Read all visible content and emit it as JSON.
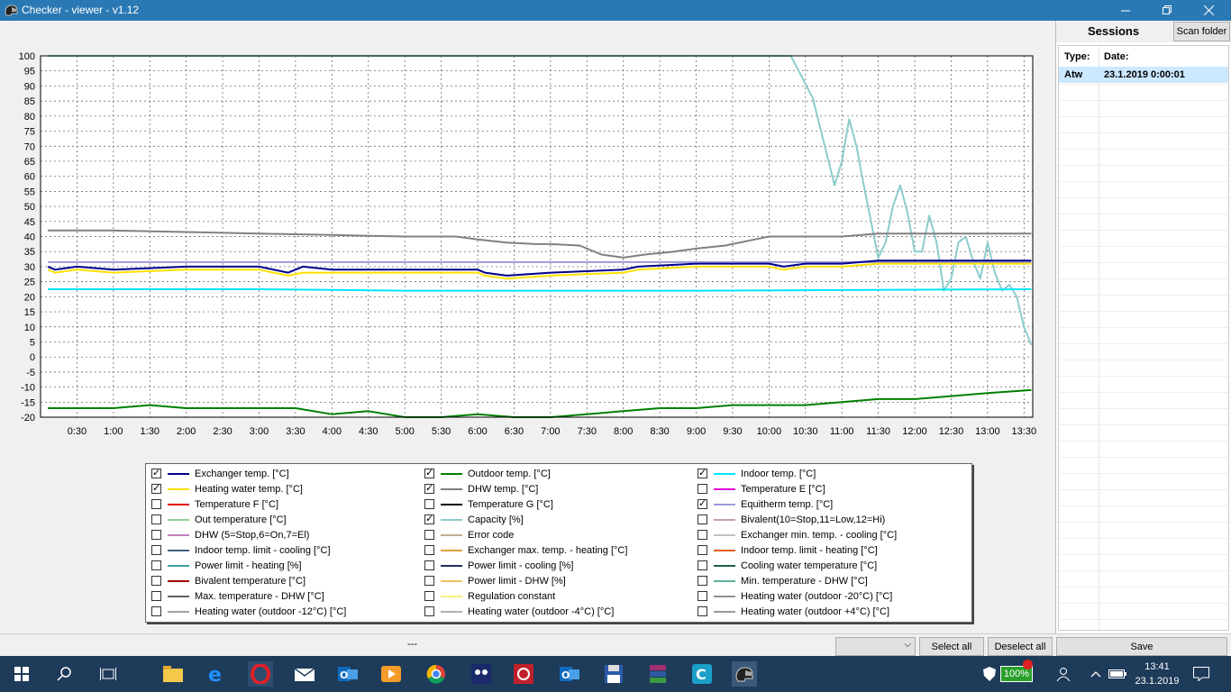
{
  "window": {
    "title": "Checker - viewer - v1.12",
    "icon": "helmet-icon",
    "controls": [
      "minimize-icon",
      "restore-icon",
      "close-icon"
    ]
  },
  "chart_data": {
    "type": "line",
    "ylim": [
      -20,
      100
    ],
    "yticks": [
      "100",
      "95",
      "90",
      "85",
      "80",
      "75",
      "70",
      "65",
      "60",
      "55",
      "50",
      "45",
      "40",
      "35",
      "30",
      "25",
      "20",
      "15",
      "10",
      "5",
      "0",
      "-5",
      "-10",
      "-15",
      "-20"
    ],
    "xticks": [
      "0:30",
      "1:00",
      "1:30",
      "2:00",
      "2:30",
      "3:00",
      "3:30",
      "4:00",
      "4:30",
      "5:00",
      "5:30",
      "6:00",
      "6:30",
      "7:00",
      "7:30",
      "8:00",
      "8:30",
      "9:00",
      "9:30",
      "10:00",
      "10:30",
      "11:00",
      "11:30",
      "12:00",
      "12:30",
      "13:00",
      "13:30"
    ],
    "grid": true,
    "series": [
      {
        "name": "Capacity [%]",
        "color": "#8ccccc",
        "x": [
          0.1,
          2,
          4,
          6,
          8,
          10,
          10.3,
          10.6,
          10.9,
          11,
          11.1,
          11.2,
          11.3,
          11.5,
          11.6,
          11.7,
          11.8,
          11.9,
          12,
          12.1,
          12.2,
          12.3,
          12.4,
          12.5,
          12.6,
          12.7,
          12.8,
          12.9,
          13,
          13.1,
          13.2,
          13.3,
          13.4,
          13.5,
          13.6
        ],
        "y": [
          100,
          100,
          100,
          100,
          100,
          100,
          100,
          86,
          57,
          65,
          79,
          70,
          57,
          33,
          38,
          50,
          57,
          48,
          35,
          35,
          47,
          38,
          22,
          26,
          38,
          40,
          32,
          26,
          38,
          28,
          22,
          24,
          20,
          10,
          4
        ]
      },
      {
        "name": "DHW temp. [°C]",
        "color": "#808080",
        "x": [
          0.1,
          1,
          2,
          3,
          4,
          5,
          5.7,
          6,
          6.4,
          6.8,
          7.0,
          7.4,
          7.7,
          8.0,
          8.3,
          8.7,
          9.0,
          9.4,
          9.8,
          10.0,
          10.5,
          11.0,
          11.5,
          12,
          12.5,
          13,
          13.6
        ],
        "y": [
          42,
          42,
          41.5,
          41,
          40.5,
          40,
          40,
          39,
          38,
          37.5,
          37.5,
          37,
          34,
          33,
          34,
          35,
          36,
          37,
          39,
          40,
          40,
          40,
          41,
          41,
          41,
          41,
          41
        ]
      },
      {
        "name": "Equitherm temp. [°C]",
        "color": "#9a9ad8",
        "x": [
          0.1,
          13.6
        ],
        "y": [
          31.5,
          31.5
        ]
      },
      {
        "name": "Exchanger temp. [°C]",
        "color": "#00008b",
        "x": [
          0.1,
          0.2,
          0.5,
          1,
          2,
          3,
          3.4,
          3.6,
          4,
          5,
          6,
          6.1,
          6.4,
          7,
          8,
          8.2,
          9,
          10,
          10.2,
          10.5,
          11,
          11.5,
          12,
          12.5,
          13,
          13.6
        ],
        "y": [
          30,
          29,
          30,
          29,
          30,
          30,
          28,
          30,
          29,
          29,
          29,
          28,
          27,
          28,
          29,
          30,
          31,
          31,
          30,
          31,
          31,
          32,
          32,
          32,
          32,
          32
        ]
      },
      {
        "name": "Heating water temp. [°C]",
        "color": "#ffe000",
        "x": [
          0.1,
          0.2,
          0.5,
          1,
          2,
          3,
          3.4,
          3.6,
          4,
          5,
          6,
          6.1,
          6.4,
          7,
          8,
          8.2,
          9,
          10,
          10.2,
          10.5,
          11,
          11.5,
          12,
          12.5,
          13,
          13.6
        ],
        "y": [
          29,
          28,
          29,
          28,
          29,
          29,
          27,
          28,
          28,
          28,
          28,
          27,
          26,
          27,
          28,
          29,
          30,
          30,
          29,
          30,
          30,
          31,
          31,
          31,
          31,
          31
        ]
      },
      {
        "name": "Indoor temp. [°C]",
        "color": "#00e5ff",
        "x": [
          0.1,
          3,
          5,
          7,
          9,
          13.6
        ],
        "y": [
          22.5,
          22.5,
          22,
          22,
          22,
          22.5
        ]
      },
      {
        "name": "Outdoor temp. [°C]",
        "color": "#008000",
        "x": [
          0.1,
          0.5,
          1,
          1.5,
          2,
          2.5,
          3,
          3.5,
          4,
          4.5,
          5,
          5.5,
          6,
          6.5,
          7,
          7.5,
          8,
          8.5,
          9,
          9.5,
          10,
          10.5,
          11,
          11.5,
          12,
          12.5,
          13,
          13.6
        ],
        "y": [
          -17,
          -17,
          -17,
          -16,
          -17,
          -17,
          -17,
          -17,
          -19,
          -18,
          -20,
          -20,
          -19,
          -20,
          -20,
          -19,
          -18,
          -17,
          -17,
          -16,
          -16,
          -16,
          -15,
          -14,
          -14,
          -13,
          -12,
          -11
        ]
      }
    ]
  },
  "legend": {
    "items": [
      {
        "label": "Exchanger temp. [°C]",
        "color": "#00008b",
        "checked": true
      },
      {
        "label": "Outdoor temp. [°C]",
        "color": "#008000",
        "checked": true
      },
      {
        "label": "Indoor temp. [°C]",
        "color": "#00e5ff",
        "checked": true
      },
      {
        "label": "Heating water temp. [°C]",
        "color": "#ffe000",
        "checked": true
      },
      {
        "label": "DHW temp. [°C]",
        "color": "#808080",
        "checked": true
      },
      {
        "label": "Temperature E [°C]",
        "color": "#e000e0",
        "checked": false
      },
      {
        "label": "Temperature F [°C]",
        "color": "#e00000",
        "checked": false
      },
      {
        "label": "Temperature G [°C]",
        "color": "#000000",
        "checked": false
      },
      {
        "label": "Equitherm temp. [°C]",
        "color": "#9a9ad8",
        "checked": true
      },
      {
        "label": "Out temperature [°C]",
        "color": "#90d090",
        "checked": false
      },
      {
        "label": "Capacity [%]",
        "color": "#8ccccc",
        "checked": true
      },
      {
        "label": "Bivalent(10=Stop,11=Low,12=Hi)",
        "color": "#c8a0a0",
        "checked": false
      },
      {
        "label": "DHW (5=Stop,6=On,7=El)",
        "color": "#c080c0",
        "checked": false
      },
      {
        "label": "Error code",
        "color": "#c0b090",
        "checked": false
      },
      {
        "label": "Exchanger min. temp. - cooling [°C]",
        "color": "#c0c0c0",
        "checked": false
      },
      {
        "label": "Indoor temp. limit - cooling [°C]",
        "color": "#406080",
        "checked": false
      },
      {
        "label": "Exchanger max. temp. - heating [°C]",
        "color": "#e0a040",
        "checked": false
      },
      {
        "label": "Indoor temp. limit - heating [°C]",
        "color": "#e06020",
        "checked": false
      },
      {
        "label": "Power limit - heating [%]",
        "color": "#40a0a0",
        "checked": false
      },
      {
        "label": "Power limit - cooling [%]",
        "color": "#203060",
        "checked": false
      },
      {
        "label": "Cooling water temperature [°C]",
        "color": "#206040",
        "checked": false
      },
      {
        "label": "Bivalent temperature [°C]",
        "color": "#a00000",
        "checked": false
      },
      {
        "label": "Power limit - DHW [%]",
        "color": "#f0c060",
        "checked": false
      },
      {
        "label": "Min. temperature - DHW [°C]",
        "color": "#60b0a0",
        "checked": false
      },
      {
        "label": "Max. temperature - DHW [°C]",
        "color": "#606060",
        "checked": false
      },
      {
        "label": "Regulation constant",
        "color": "#f8f080",
        "checked": false
      },
      {
        "label": "Heating water (outdoor -20°C) [°C]",
        "color": "#909090",
        "checked": false
      },
      {
        "label": "Heating water (outdoor -12°C) [°C]",
        "color": "#a0a0a0",
        "checked": false
      },
      {
        "label": "Heating water (outdoor -4°C) [°C]",
        "color": "#b0b0b0",
        "checked": false
      },
      {
        "label": "Heating water (outdoor +4°C) [°C]",
        "color": "#989898",
        "checked": false
      }
    ]
  },
  "sessions": {
    "title": "Sessions",
    "scan_label": "Scan folder",
    "col_type": "Type:",
    "col_date": "Date:",
    "rows": [
      {
        "type": "Atw",
        "date": "23.1.2019 0:00:01"
      }
    ]
  },
  "status": {
    "text": "---",
    "combo_value": "",
    "select_all": "Select all",
    "deselect_all": "Deselect all",
    "save": "Save"
  },
  "taskbar": {
    "battery": "100%",
    "time": "13:41",
    "date": "23.1.2019"
  }
}
